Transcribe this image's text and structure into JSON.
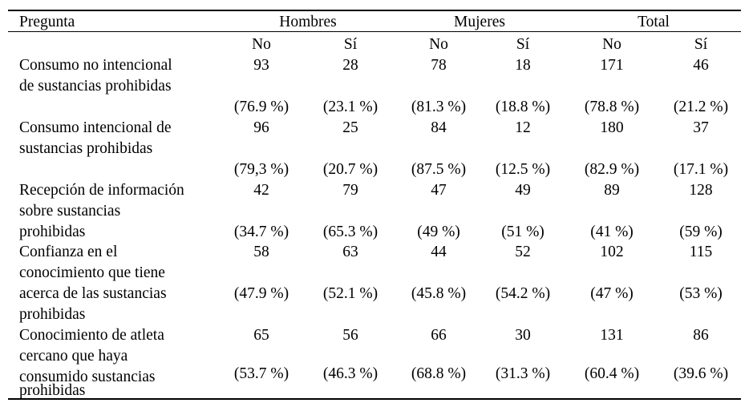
{
  "header": {
    "question": "Pregunta",
    "groups": [
      "Hombres",
      "Mujeres",
      "Total"
    ],
    "subcolumns": [
      "No",
      "Sí",
      "No",
      "Sí",
      "No",
      "Sí"
    ]
  },
  "rows": [
    {
      "question_lines": [
        "Consumo no intencional",
        "de sustancias prohibidas"
      ],
      "counts": [
        "93",
        "28",
        "78",
        "18",
        "171",
        "46"
      ],
      "percents": [
        "(76.9 %)",
        "(23.1 %)",
        "(81.3 %)",
        "(18.8 %)",
        "(78.8 %)",
        "(21.2 %)"
      ]
    },
    {
      "question_lines": [
        "Consumo intencional de",
        "sustancias prohibidas"
      ],
      "counts": [
        "96",
        "25",
        "84",
        "12",
        "180",
        "37"
      ],
      "percents": [
        "(79,3 %)",
        "(20.7 %)",
        "(87.5 %)",
        "(12.5 %)",
        "(82.9 %)",
        "(17.1 %)"
      ]
    },
    {
      "question_lines": [
        "Recepción de información",
        "sobre sustancias",
        "prohibidas"
      ],
      "counts": [
        "42",
        "79",
        "47",
        "49",
        "89",
        "128"
      ],
      "percents": [
        "(34.7 %)",
        "(65.3 %)",
        "(49 %)",
        "(51 %)",
        "(41 %)",
        "(59 %)"
      ]
    },
    {
      "question_lines": [
        "Confianza en el",
        "conocimiento que tiene",
        "acerca de las sustancias",
        "prohibidas"
      ],
      "counts": [
        "58",
        "63",
        "44",
        "52",
        "102",
        "115"
      ],
      "percents": [
        "(47.9 %)",
        "(52.1 %)",
        "(45.8 %)",
        "(54.2 %)",
        "(47 %)",
        "(53 %)"
      ]
    },
    {
      "question_lines": [
        "Conocimiento de atleta",
        "cercano que haya",
        "consumido sustancias",
        "prohibidas"
      ],
      "counts": [
        "65",
        "56",
        "66",
        "30",
        "131",
        "86"
      ],
      "percents": [
        "(53.7 %)",
        "(46.3 %)",
        "(68.8 %)",
        "(31.3 %)",
        "(60.4 %)",
        "(39.6 %)"
      ]
    }
  ]
}
